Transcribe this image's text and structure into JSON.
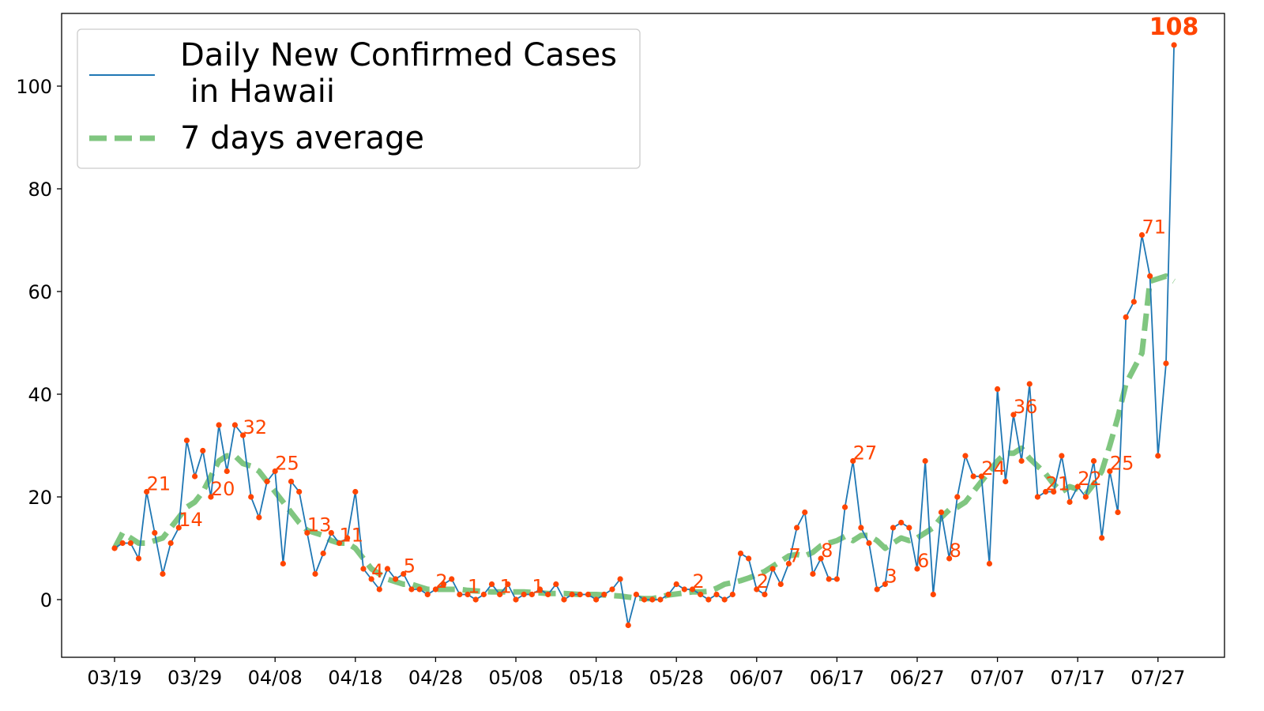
{
  "chart_data": {
    "type": "line",
    "title": "",
    "xlabel": "",
    "ylabel": "",
    "ylim": [
      -10,
      115
    ],
    "yticks": [
      0,
      20,
      40,
      60,
      80,
      100
    ],
    "xticks": [
      "03/19",
      "03/29",
      "04/08",
      "04/18",
      "04/28",
      "05/08",
      "05/18",
      "05/28",
      "06/07",
      "06/17",
      "06/27",
      "07/07",
      "07/17",
      "07/27"
    ],
    "grid": false,
    "legend": {
      "placement": "top-left",
      "entries": [
        {
          "line1": "Daily New Confirmed Cases",
          "line2": " in Hawaii",
          "style": "solid",
          "color": "#1f77b4"
        },
        {
          "line1": "7 days average",
          "line2": "",
          "style": "dashed",
          "color": "#2ca02c"
        }
      ]
    },
    "colors": {
      "daily_line": "#1f77b4",
      "markers": "#ff4500",
      "average": "#2ca02c",
      "labels": "#ff4500"
    },
    "series": [
      {
        "name": "Daily New Confirmed Cases\n in Hawaii",
        "start_date": "03/19",
        "values": [
          10,
          11,
          11,
          8,
          21,
          13,
          5,
          11,
          14,
          31,
          24,
          29,
          20,
          34,
          25,
          34,
          32,
          20,
          16,
          23,
          25,
          7,
          23,
          21,
          13,
          5,
          9,
          13,
          11,
          12,
          21,
          6,
          4,
          2,
          6,
          4,
          5,
          2,
          2,
          1,
          2,
          3,
          4,
          1,
          1,
          0,
          1,
          3,
          1,
          3,
          0,
          1,
          1,
          2,
          1,
          3,
          0,
          1,
          1,
          1,
          0,
          1,
          2,
          4,
          -5,
          1,
          0,
          0,
          0,
          1,
          3,
          2,
          2,
          1,
          0,
          1,
          0,
          1,
          9,
          8,
          2,
          1,
          6,
          3,
          7,
          14,
          17,
          5,
          8,
          4,
          4,
          18,
          27,
          14,
          11,
          2,
          3,
          14,
          15,
          14,
          6,
          27,
          1,
          17,
          8,
          20,
          28,
          24,
          24,
          7,
          41,
          23,
          36,
          27,
          42,
          20,
          21,
          21,
          28,
          19,
          22,
          20,
          27,
          12,
          25,
          17,
          55,
          58,
          71,
          63,
          28,
          46,
          108
        ]
      },
      {
        "name": "7 days average",
        "start_date": "03/19",
        "values": [
          10,
          13,
          12,
          11,
          11,
          11.5,
          12,
          14,
          16,
          18,
          19,
          21,
          24,
          27,
          28,
          28,
          26.5,
          26,
          25,
          23,
          21,
          19,
          17,
          15,
          13.5,
          13,
          12.5,
          11.5,
          11,
          11,
          10,
          8,
          6,
          5,
          4,
          3.5,
          3,
          3,
          2.5,
          2,
          2,
          2,
          2,
          2,
          1.8,
          1.7,
          1.6,
          1.5,
          1.5,
          1.5,
          1.5,
          1.5,
          1.4,
          1.3,
          1.2,
          1.2,
          1.2,
          1.1,
          1.0,
          1.0,
          1.0,
          0.9,
          0.8,
          0.7,
          0.5,
          0.3,
          0.2,
          0.2,
          0.5,
          0.9,
          1.1,
          1.3,
          1.5,
          1.5,
          1.6,
          2.2,
          3.0,
          3.3,
          3.7,
          4.2,
          4.8,
          5.5,
          6.5,
          7.5,
          8.5,
          8.8,
          8.5,
          9.2,
          10.5,
          11,
          11.5,
          12.3,
          11.5,
          12.5,
          12.5,
          11.5,
          10,
          11,
          12,
          11.5,
          12,
          13,
          14,
          16,
          17.5,
          18,
          19,
          21,
          23,
          25,
          27,
          28.5,
          28.5,
          29.5,
          27.5,
          26,
          24.5,
          22.5,
          21,
          22,
          21.5,
          20.5,
          22.5,
          25,
          30,
          35.5,
          42,
          45,
          48,
          62,
          62.5,
          63,
          62
        ]
      }
    ],
    "annotations": [
      {
        "index": 4,
        "text": "21"
      },
      {
        "index": 8,
        "text": "14"
      },
      {
        "index": 12,
        "text": "20"
      },
      {
        "index": 16,
        "text": "32"
      },
      {
        "index": 20,
        "text": "25"
      },
      {
        "index": 24,
        "text": "13"
      },
      {
        "index": 28,
        "text": "11"
      },
      {
        "index": 32,
        "text": "4"
      },
      {
        "index": 36,
        "text": "5"
      },
      {
        "index": 40,
        "text": "2"
      },
      {
        "index": 44,
        "text": "1"
      },
      {
        "index": 48,
        "text": "1"
      },
      {
        "index": 52,
        "text": "1"
      },
      {
        "index": 72,
        "text": "2"
      },
      {
        "index": 80,
        "text": "2"
      },
      {
        "index": 84,
        "text": "7"
      },
      {
        "index": 88,
        "text": "8"
      },
      {
        "index": 92,
        "text": "27"
      },
      {
        "index": 96,
        "text": "3"
      },
      {
        "index": 100,
        "text": "6"
      },
      {
        "index": 104,
        "text": "8"
      },
      {
        "index": 108,
        "text": "24"
      },
      {
        "index": 112,
        "text": "36"
      },
      {
        "index": 116,
        "text": "21"
      },
      {
        "index": 120,
        "text": "22"
      },
      {
        "index": 124,
        "text": "25"
      },
      {
        "index": 128,
        "text": "71"
      },
      {
        "index": 132,
        "text": "108",
        "emphasis": "bold"
      }
    ]
  }
}
